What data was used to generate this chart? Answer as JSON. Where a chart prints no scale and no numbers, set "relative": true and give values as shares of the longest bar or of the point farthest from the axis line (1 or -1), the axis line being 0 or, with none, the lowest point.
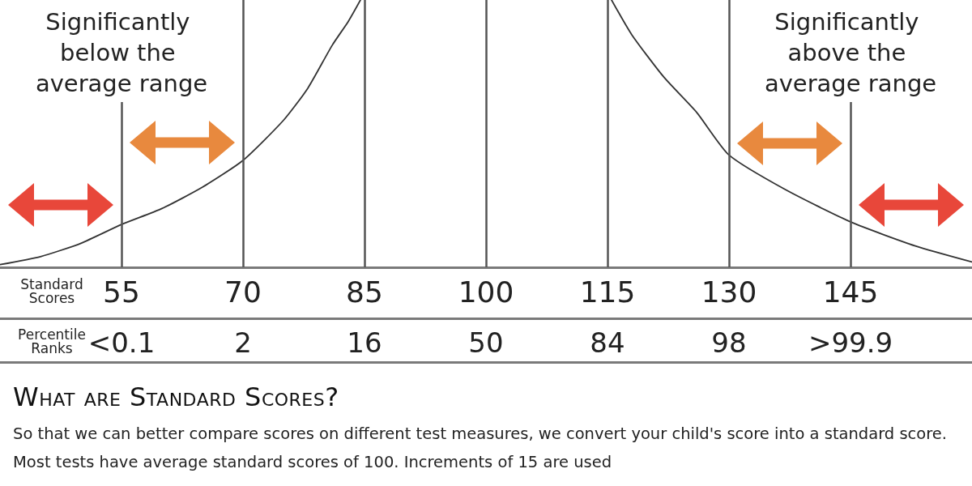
{
  "chart_data": {
    "type": "line",
    "relative": true,
    "xlabel": "Standard Scores",
    "xlim": [
      40,
      160
    ],
    "xticks": [
      55,
      70,
      85,
      100,
      115,
      130,
      145
    ],
    "series": [
      {
        "color": "#333333",
        "x": [
          40,
          45,
          50,
          55,
          60,
          65,
          70,
          75,
          78,
          81,
          83,
          84.5,
          100,
          115.5,
          118,
          122,
          126,
          130,
          137,
          145,
          153,
          160
        ],
        "values": [
          0.01,
          0.04,
          0.09,
          0.16,
          0.22,
          0.3,
          0.4,
          0.55,
          0.67,
          0.83,
          0.92,
          1,
          null,
          1,
          0.87,
          0.71,
          0.58,
          0.42,
          0.29,
          0.17,
          0.08,
          0.02
        ]
      }
    ],
    "ref_lines": [
      {
        "axis": "x",
        "value": 55,
        "label": "Significantly below the average range"
      },
      {
        "axis": "x",
        "value": 70
      },
      {
        "axis": "x",
        "value": 85
      },
      {
        "axis": "x",
        "value": 100
      },
      {
        "axis": "x",
        "value": 115
      },
      {
        "axis": "x",
        "value": 130
      },
      {
        "axis": "x",
        "value": 145,
        "label": "Significantly above the average range"
      }
    ],
    "annotations": [
      "Percentile Ranks",
      "<0.1",
      "2",
      "16",
      "50",
      "84",
      "98",
      ">99.9",
      "What are Standard Scores?",
      "So that we can better compare scores on different test measures, we convert your child's score into a standard score. Most tests have average standard scores of 100. Increments of 15 are used"
    ]
  }
}
